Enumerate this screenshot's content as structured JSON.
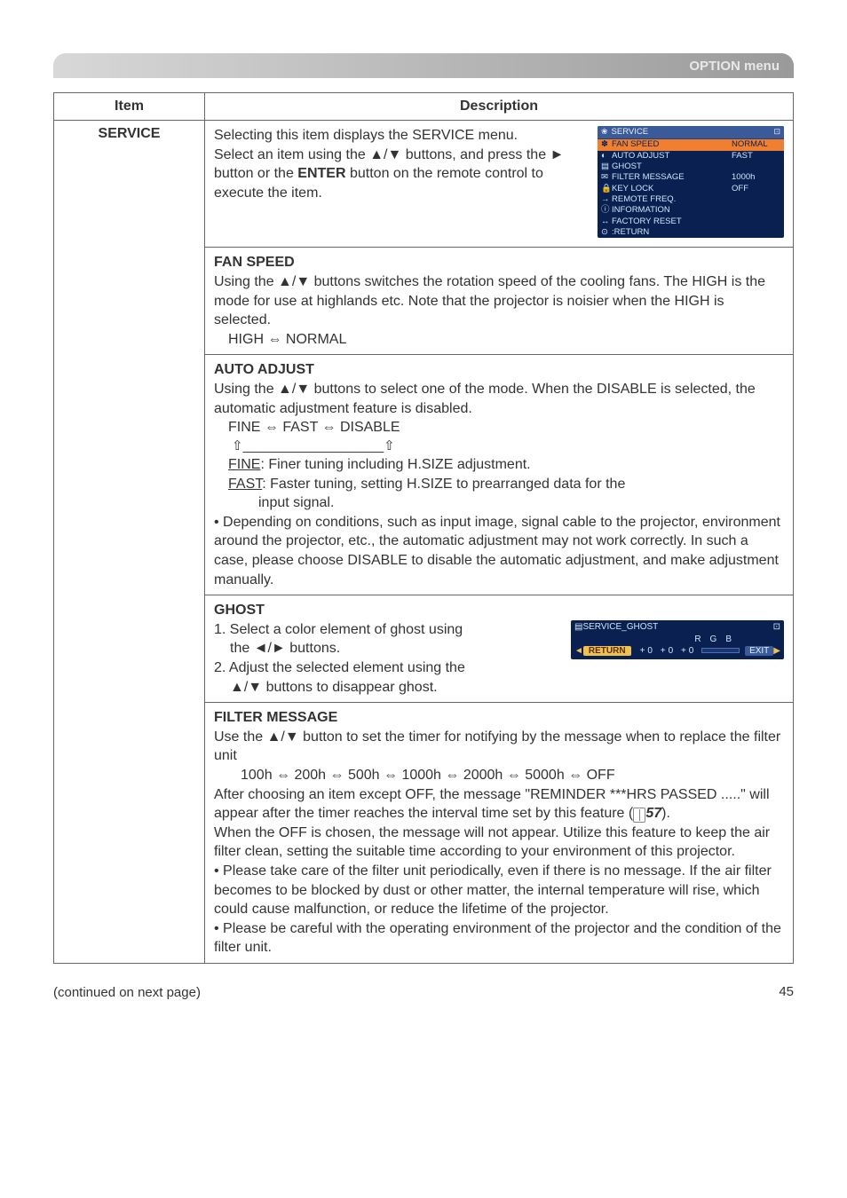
{
  "header": {
    "title": "OPTION menu"
  },
  "table": {
    "headers": {
      "item": "Item",
      "description": "Description"
    },
    "service_label": "SERVICE"
  },
  "menu_panel": {
    "title": "SERVICE",
    "items": [
      {
        "icon": "✽",
        "label": "FAN SPEED",
        "value": "NORMAL",
        "hl": true
      },
      {
        "icon": "◐",
        "label": "AUTO ADJUST",
        "value": "FAST"
      },
      {
        "icon": "▤",
        "label": "GHOST",
        "value": ""
      },
      {
        "icon": "✉",
        "label": "FILTER MESSAGE",
        "value": "1000h"
      },
      {
        "icon": "🔒",
        "label": "KEY LOCK",
        "value": "OFF"
      },
      {
        "icon": "→",
        "label": "REMOTE FREQ.",
        "value": ""
      },
      {
        "icon": "ⓘ",
        "label": "INFORMATION",
        "value": ""
      },
      {
        "icon": "↔",
        "label": "FACTORY RESET",
        "value": ""
      },
      {
        "icon": "⊙",
        "label": ":RETURN",
        "value": ""
      }
    ]
  },
  "ghost_panel": {
    "title": "SERVICE_GHOST",
    "r": "R",
    "g": "G",
    "b": "B",
    "return": "RETURN",
    "vals": "+0 +0 +0",
    "exit": "EXIT"
  },
  "intro": {
    "l1": "Selecting this item displays the SERVICE menu.",
    "l2": "Select an item using the ▲/▼ buttons, and press the ► button or the ",
    "enter": "ENTER",
    "l3": " button on the remote control to execute the item."
  },
  "fan": {
    "title": "FAN SPEED",
    "p1": "Using the ▲/▼ buttons switches the rotation speed of the cooling fans. The HIGH is the mode for use at highlands etc. Note that the projector is noisier when the HIGH is selected.",
    "cycle": "HIGH ⇔ NORMAL"
  },
  "auto": {
    "title": "AUTO ADJUST",
    "p1": "Using the ▲/▼ buttons to select one of the mode. When the DISABLE is selected, the automatic adjustment feature is disabled.",
    "cycle": "FINE ⇔ FAST ⇔ DISABLE",
    "arrows": "⇧___________________⇧",
    "fine_u": "FINE",
    "fine": ": Finer tuning including H.SIZE adjustment.",
    "fast_u": "FAST",
    "fast": ": Faster tuning, setting H.SIZE to prearranged data for the",
    "fast2": "input signal.",
    "p2": "• Depending on conditions, such as input image, signal cable to the projector, environment around the projector, etc., the automatic adjustment may not work correctly.  In such a case, please choose DISABLE to disable the automatic adjustment, and make adjustment manually."
  },
  "ghost": {
    "title": "GHOST",
    "l1": "1. Select a color element of ghost using",
    "l1b": "the ◄/► buttons.",
    "l2": "2. Adjust the selected element using the",
    "l2b": "▲/▼ buttons to disappear ghost."
  },
  "filter": {
    "title": "FILTER MESSAGE",
    "p1": "Use the ▲/▼ button to set the timer for notifying by the message when to replace the filter unit",
    "cycle": "100h ⇔ 200h ⇔ 500h ⇔ 1000h ⇔ 2000h ⇔ 5000h ⇔ OFF",
    "p2a": "After choosing an item except OFF, the message \"REMINDER ***HRS PASSED .....\" will appear after the timer reaches the interval time set by this feature (",
    "ref": "57",
    "p2b": ").",
    "p3": "When the OFF is chosen, the message will not appear. Utilize this feature to keep the air filter clean, setting the suitable time according to your environment of this projector.",
    "p4": "• Please take care of the filter unit periodically, even if there is no message. If the air filter becomes to be blocked by dust or other matter, the internal temperature will rise, which could cause malfunction, or reduce the lifetime of the projector.",
    "p5": "• Please be careful with the operating environment of the projector and the condition of the filter unit."
  },
  "footer": {
    "continued": "(continued on next page)",
    "page": "45"
  }
}
